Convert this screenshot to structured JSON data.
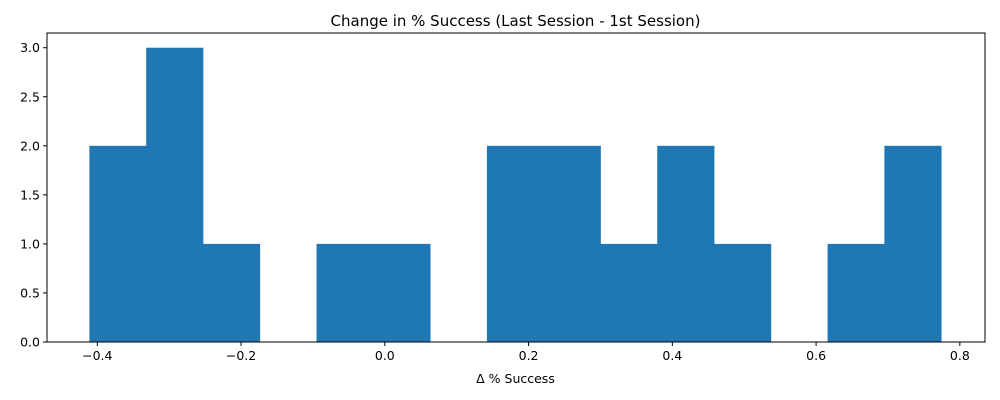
{
  "chart_data": {
    "type": "bar",
    "title": "Change in % Success (Last Session - 1st Session)",
    "xlabel": "Δ % Success",
    "ylabel": "",
    "bar_color": "#1f77b4",
    "xlim": [
      -0.47,
      0.835
    ],
    "ylim": [
      0,
      3.15
    ],
    "grid": false,
    "x_ticks": [
      -0.4,
      -0.2,
      0.0,
      0.2,
      0.4,
      0.6,
      0.8
    ],
    "x_tick_labels": [
      "−0.4",
      "−0.2",
      "0.0",
      "0.2",
      "0.4",
      "0.6",
      "0.8"
    ],
    "y_ticks": [
      0.0,
      0.5,
      1.0,
      1.5,
      2.0,
      2.5,
      3.0
    ],
    "y_tick_labels": [
      "0.0",
      "0.5",
      "1.0",
      "1.5",
      "2.0",
      "2.5",
      "3.0"
    ],
    "bin_edges": [
      -0.411,
      -0.332,
      -0.253,
      -0.174,
      -0.095,
      -0.016,
      0.063,
      0.142,
      0.221,
      0.3,
      0.379,
      0.458,
      0.537,
      0.616,
      0.695,
      0.774
    ],
    "values": [
      2,
      3,
      1,
      0,
      1,
      1,
      0,
      2,
      2,
      1,
      2,
      1,
      0,
      1,
      2
    ]
  }
}
